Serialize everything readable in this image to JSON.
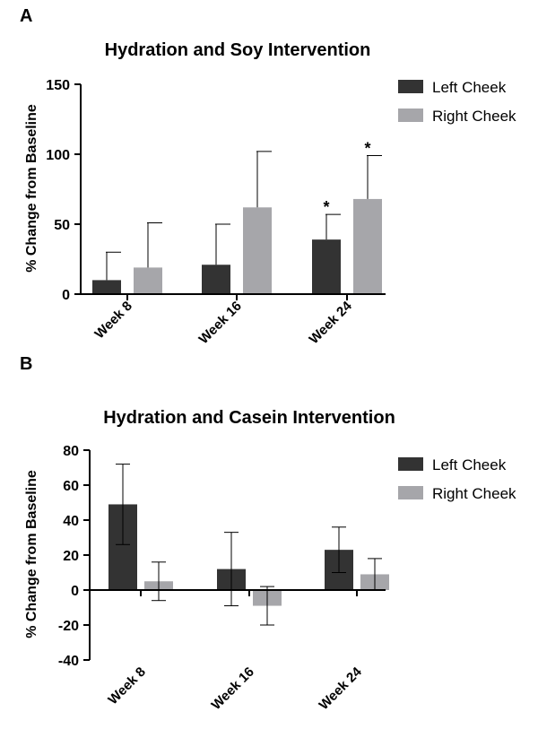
{
  "chart_data": [
    {
      "panel": "A",
      "type": "bar",
      "title": "Hydration and Soy Intervention",
      "xlabel": "",
      "ylabel": "% Change from Baseline",
      "ylim": [
        0,
        150
      ],
      "yticks": [
        0,
        50,
        100,
        150
      ],
      "categories": [
        "Week 8",
        "Week 16",
        "Week 24"
      ],
      "series": [
        {
          "name": "Left Cheek",
          "color": "#333333",
          "values": [
            10,
            21,
            39
          ],
          "errors": [
            20,
            29,
            18
          ],
          "error_direction": "up",
          "annotations": [
            "",
            "",
            "*"
          ]
        },
        {
          "name": "Right Cheek",
          "color": "#a6a6aa",
          "values": [
            19,
            62,
            68
          ],
          "errors": [
            32,
            40,
            31
          ],
          "error_direction": "up",
          "annotations": [
            "",
            "",
            "*"
          ]
        }
      ],
      "legend_position": "top-right"
    },
    {
      "panel": "B",
      "type": "bar",
      "title": "Hydration and Casein Intervention",
      "xlabel": "",
      "ylabel": "% Change from Baseline",
      "ylim": [
        -40,
        80
      ],
      "yticks": [
        -40,
        -20,
        0,
        20,
        40,
        60,
        80
      ],
      "categories": [
        "Week 8",
        "Week 16",
        "Week 24"
      ],
      "series": [
        {
          "name": "Left Cheek",
          "color": "#333333",
          "values": [
            49,
            12,
            23
          ],
          "errors": [
            23,
            21,
            13
          ],
          "error_direction": "both",
          "annotations": [
            "",
            "",
            ""
          ]
        },
        {
          "name": "Right Cheek",
          "color": "#a6a6aa",
          "values": [
            5,
            -9,
            9
          ],
          "errors": [
            11,
            11,
            9
          ],
          "error_direction": "both",
          "annotations": [
            "",
            "",
            ""
          ]
        }
      ],
      "legend_position": "top-right"
    }
  ]
}
